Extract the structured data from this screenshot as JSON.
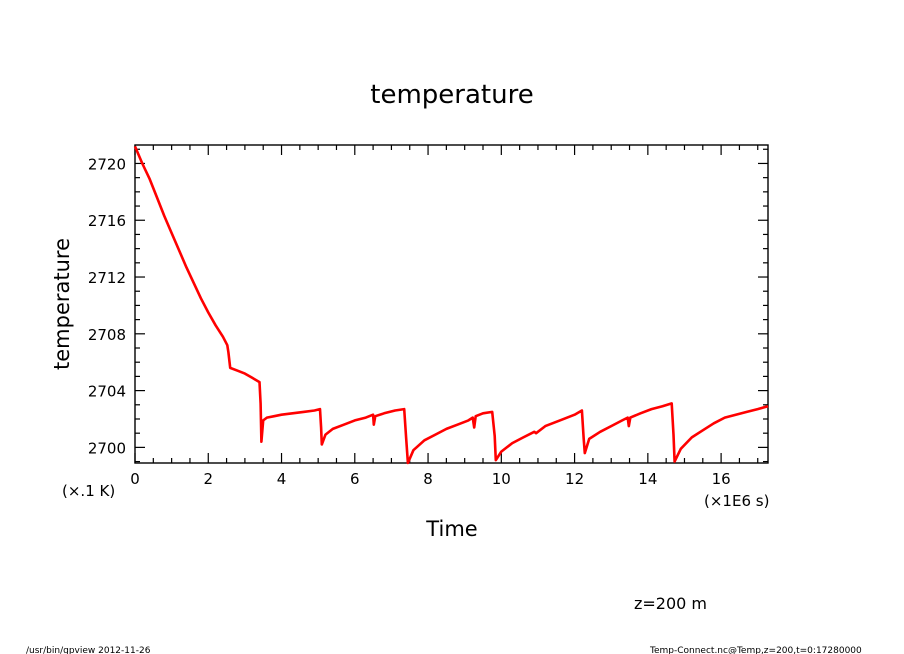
{
  "chart_data": {
    "type": "line",
    "title": "temperature",
    "xlabel": "Time",
    "ylabel": "temperature",
    "x_unit": "(×1E6 s)",
    "y_unit": "(×.1 K)",
    "xlim": [
      0,
      17.28
    ],
    "ylim": [
      2698.9,
      2721.3
    ],
    "x_ticks": [
      0,
      2,
      4,
      6,
      8,
      10,
      12,
      14,
      16
    ],
    "y_ticks": [
      2700,
      2704,
      2708,
      2712,
      2716,
      2720
    ],
    "series": [
      {
        "color": "#ff0000",
        "points": [
          [
            0.0,
            2721.2
          ],
          [
            0.2,
            2720.0
          ],
          [
            0.4,
            2718.9
          ],
          [
            0.6,
            2717.6
          ],
          [
            0.8,
            2716.3
          ],
          [
            1.0,
            2715.1
          ],
          [
            1.2,
            2713.9
          ],
          [
            1.4,
            2712.7
          ],
          [
            1.6,
            2711.6
          ],
          [
            1.8,
            2710.5
          ],
          [
            2.0,
            2709.5
          ],
          [
            2.2,
            2708.6
          ],
          [
            2.4,
            2707.8
          ],
          [
            2.52,
            2707.2
          ],
          [
            2.55,
            2706.7
          ],
          [
            2.6,
            2705.6
          ],
          [
            2.8,
            2705.4
          ],
          [
            3.0,
            2705.2
          ],
          [
            3.2,
            2704.9
          ],
          [
            3.4,
            2704.6
          ],
          [
            3.43,
            2703.1
          ],
          [
            3.45,
            2700.4
          ],
          [
            3.5,
            2701.9
          ],
          [
            3.6,
            2702.1
          ],
          [
            3.8,
            2702.2
          ],
          [
            4.0,
            2702.3
          ],
          [
            4.3,
            2702.4
          ],
          [
            4.6,
            2702.5
          ],
          [
            4.9,
            2702.6
          ],
          [
            5.05,
            2702.7
          ],
          [
            5.08,
            2701.4
          ],
          [
            5.1,
            2700.2
          ],
          [
            5.2,
            2700.9
          ],
          [
            5.4,
            2701.3
          ],
          [
            5.7,
            2701.6
          ],
          [
            6.0,
            2701.9
          ],
          [
            6.3,
            2702.1
          ],
          [
            6.5,
            2702.3
          ],
          [
            6.52,
            2701.6
          ],
          [
            6.56,
            2702.2
          ],
          [
            6.8,
            2702.4
          ],
          [
            7.1,
            2702.6
          ],
          [
            7.35,
            2702.7
          ],
          [
            7.4,
            2700.7
          ],
          [
            7.45,
            2698.9
          ],
          [
            7.6,
            2699.8
          ],
          [
            7.9,
            2700.5
          ],
          [
            8.2,
            2700.9
          ],
          [
            8.5,
            2701.3
          ],
          [
            8.8,
            2701.6
          ],
          [
            9.1,
            2701.9
          ],
          [
            9.22,
            2702.1
          ],
          [
            9.26,
            2701.4
          ],
          [
            9.3,
            2702.2
          ],
          [
            9.5,
            2702.4
          ],
          [
            9.75,
            2702.5
          ],
          [
            9.82,
            2700.8
          ],
          [
            9.85,
            2699.1
          ],
          [
            10.0,
            2699.7
          ],
          [
            10.3,
            2700.3
          ],
          [
            10.6,
            2700.7
          ],
          [
            10.9,
            2701.1
          ],
          [
            10.95,
            2701.0
          ],
          [
            11.2,
            2701.5
          ],
          [
            11.6,
            2701.9
          ],
          [
            12.0,
            2702.3
          ],
          [
            12.2,
            2702.6
          ],
          [
            12.25,
            2700.6
          ],
          [
            12.28,
            2699.6
          ],
          [
            12.4,
            2700.6
          ],
          [
            12.7,
            2701.1
          ],
          [
            13.0,
            2701.5
          ],
          [
            13.3,
            2701.9
          ],
          [
            13.45,
            2702.1
          ],
          [
            13.48,
            2701.5
          ],
          [
            13.52,
            2702.1
          ],
          [
            13.8,
            2702.4
          ],
          [
            14.1,
            2702.7
          ],
          [
            14.4,
            2702.9
          ],
          [
            14.65,
            2703.1
          ],
          [
            14.7,
            2700.9
          ],
          [
            14.73,
            2699.0
          ],
          [
            14.9,
            2699.9
          ],
          [
            15.2,
            2700.7
          ],
          [
            15.5,
            2701.2
          ],
          [
            15.8,
            2701.7
          ],
          [
            16.1,
            2702.1
          ],
          [
            16.4,
            2702.3
          ],
          [
            16.7,
            2702.5
          ],
          [
            17.0,
            2702.7
          ],
          [
            17.28,
            2702.9
          ]
        ]
      }
    ]
  },
  "annotations": {
    "level": "z=200 m",
    "footer_left": "/usr/bin/gpview   2012-11-26",
    "footer_right": "Temp-Connect.nc@Temp,z=200,t=0:17280000"
  }
}
